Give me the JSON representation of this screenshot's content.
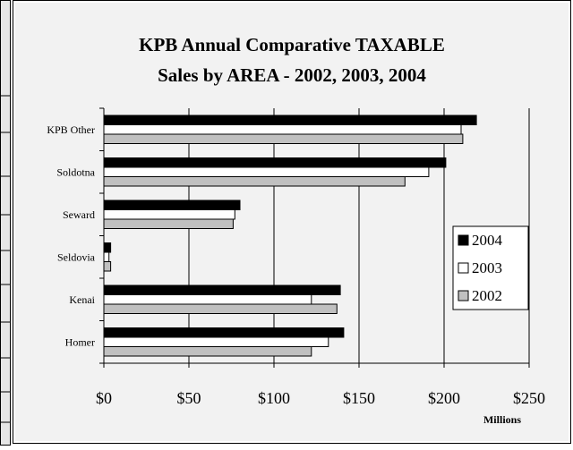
{
  "chart_data": {
    "type": "bar",
    "orientation": "horizontal",
    "title_lines": [
      "KPB Annual Comparative TAXABLE",
      "Sales by AREA - 2002, 2003, 2004"
    ],
    "categories": [
      "KPB Other",
      "Soldotna",
      "Seward",
      "Seldovia",
      "Kenai",
      "Homer"
    ],
    "series": [
      {
        "name": "2004",
        "color": "#000000",
        "values": [
          219,
          201,
          80,
          4,
          139,
          141
        ]
      },
      {
        "name": "2003",
        "color": "#ffffff",
        "values": [
          210,
          191,
          77,
          3,
          122,
          132
        ]
      },
      {
        "name": "2002",
        "color": "#c0c0c0",
        "values": [
          211,
          177,
          76,
          4,
          137,
          122
        ]
      }
    ],
    "xlim": [
      0,
      250
    ],
    "x_ticks": [
      "$0",
      "$50",
      "$100",
      "$150",
      "$200",
      "$250"
    ],
    "x_tick_values": [
      0,
      50,
      100,
      150,
      200,
      250
    ],
    "xlabel": "Millions",
    "ylabel": "",
    "grid": "vertical",
    "legend_position": "right"
  },
  "colors": {
    "plot_background": "#f2f2f2",
    "gridline": "#000000"
  }
}
